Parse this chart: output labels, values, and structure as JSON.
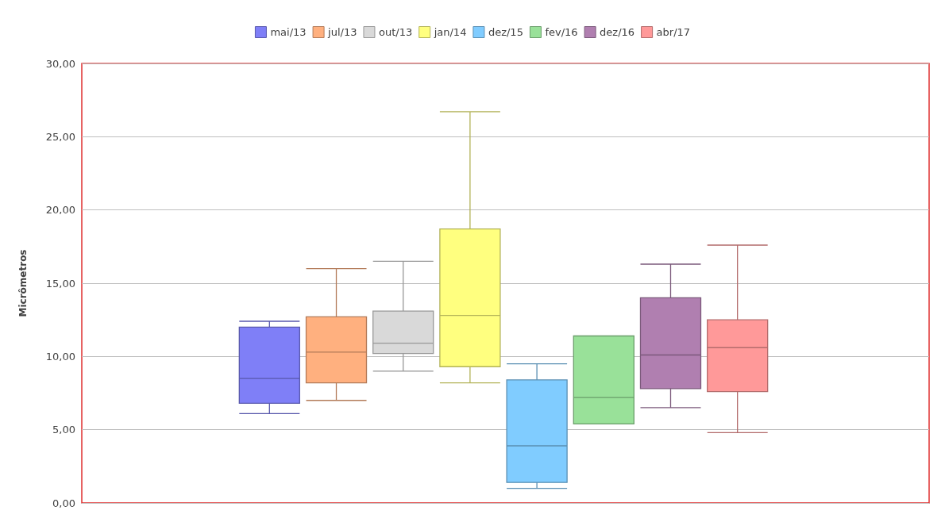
{
  "chart_data": {
    "type": "box",
    "ylabel": "Micrômetros",
    "categories": [
      null
    ],
    "series": [
      {
        "name": "mai/13",
        "color": "#7f7ff7",
        "boxes": [
          {
            "low": 6.1,
            "q1": 6.8,
            "median": 8.5,
            "q3": 12.0,
            "high": 12.4
          }
        ]
      },
      {
        "name": "jul/13",
        "color": "#ffb07f",
        "boxes": [
          {
            "low": 7.0,
            "q1": 8.2,
            "median": 10.3,
            "q3": 12.7,
            "high": 16.0
          }
        ]
      },
      {
        "name": "out/13",
        "color": "#d9d9d9",
        "boxes": [
          {
            "low": 9.0,
            "q1": 10.2,
            "median": 10.9,
            "q3": 13.1,
            "high": 16.5
          }
        ]
      },
      {
        "name": "jan/14",
        "color": "#ffff7f",
        "boxes": [
          {
            "low": 8.2,
            "q1": 9.3,
            "median": 12.8,
            "q3": 18.7,
            "high": 26.7
          }
        ]
      },
      {
        "name": "dez/15",
        "color": "#80ccff",
        "boxes": [
          {
            "low": 1.0,
            "q1": 1.4,
            "median": 3.9,
            "q3": 8.4,
            "high": 9.5
          }
        ]
      },
      {
        "name": "fev/16",
        "color": "#99e199",
        "boxes": [
          {
            "low": 5.4,
            "q1": 5.4,
            "median": 7.2,
            "q3": 11.4,
            "high": 11.4
          }
        ]
      },
      {
        "name": "dez/16",
        "color": "#b07fb0",
        "boxes": [
          {
            "low": 6.5,
            "q1": 7.8,
            "median": 10.1,
            "q3": 14.0,
            "high": 16.3
          }
        ]
      },
      {
        "name": "abr/17",
        "color": "#ff9999",
        "boxes": [
          {
            "low": 4.8,
            "q1": 7.6,
            "median": 10.6,
            "q3": 12.5,
            "high": 17.6
          }
        ]
      }
    ],
    "ylim": [
      0,
      30
    ],
    "yticks": [
      {
        "value": 0,
        "label": "0,00"
      },
      {
        "value": 5,
        "label": "5,00"
      },
      {
        "value": 10,
        "label": "10,00"
      },
      {
        "value": 15,
        "label": "15,00"
      },
      {
        "value": 20,
        "label": "20,00"
      },
      {
        "value": 25,
        "label": "25,00"
      },
      {
        "value": 30,
        "label": "30,00"
      }
    ],
    "grid": "y",
    "legend": "top",
    "tick_labels": "y"
  }
}
